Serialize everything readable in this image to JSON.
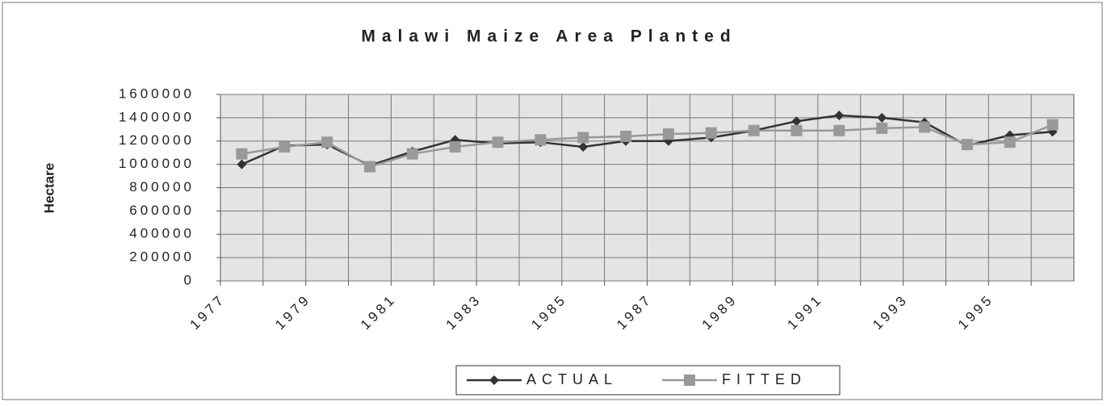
{
  "chart_data": {
    "type": "line",
    "title": "Malawi Maize Area Planted",
    "y_label": "Hectare",
    "categories": [
      "1977",
      null,
      "1979",
      null,
      "1981",
      null,
      "1983",
      null,
      "1985",
      null,
      "1987",
      null,
      "1989",
      null,
      "1991",
      null,
      "1993",
      null,
      "1995",
      null
    ],
    "series": [
      {
        "name": "ACTUAL",
        "color": "#333333",
        "marker": "diamond",
        "values": [
          1000000,
          1160000,
          1170000,
          990000,
          1110000,
          1210000,
          1180000,
          1190000,
          1150000,
          1200000,
          1200000,
          1230000,
          1290000,
          1370000,
          1420000,
          1400000,
          1360000,
          1160000,
          1250000,
          1280000
        ]
      },
      {
        "name": "FITTED",
        "color": "#999999",
        "marker": "square",
        "values": [
          1090000,
          1150000,
          1190000,
          980000,
          1090000,
          1150000,
          1190000,
          1210000,
          1230000,
          1240000,
          1260000,
          1270000,
          1290000,
          1290000,
          1290000,
          1310000,
          1320000,
          1170000,
          1190000,
          1340000
        ]
      }
    ],
    "ylim": [
      0,
      1600000
    ],
    "yticks": [
      0,
      200000,
      400000,
      600000,
      800000,
      1000000,
      1200000,
      1400000,
      1600000
    ],
    "grid": true
  }
}
